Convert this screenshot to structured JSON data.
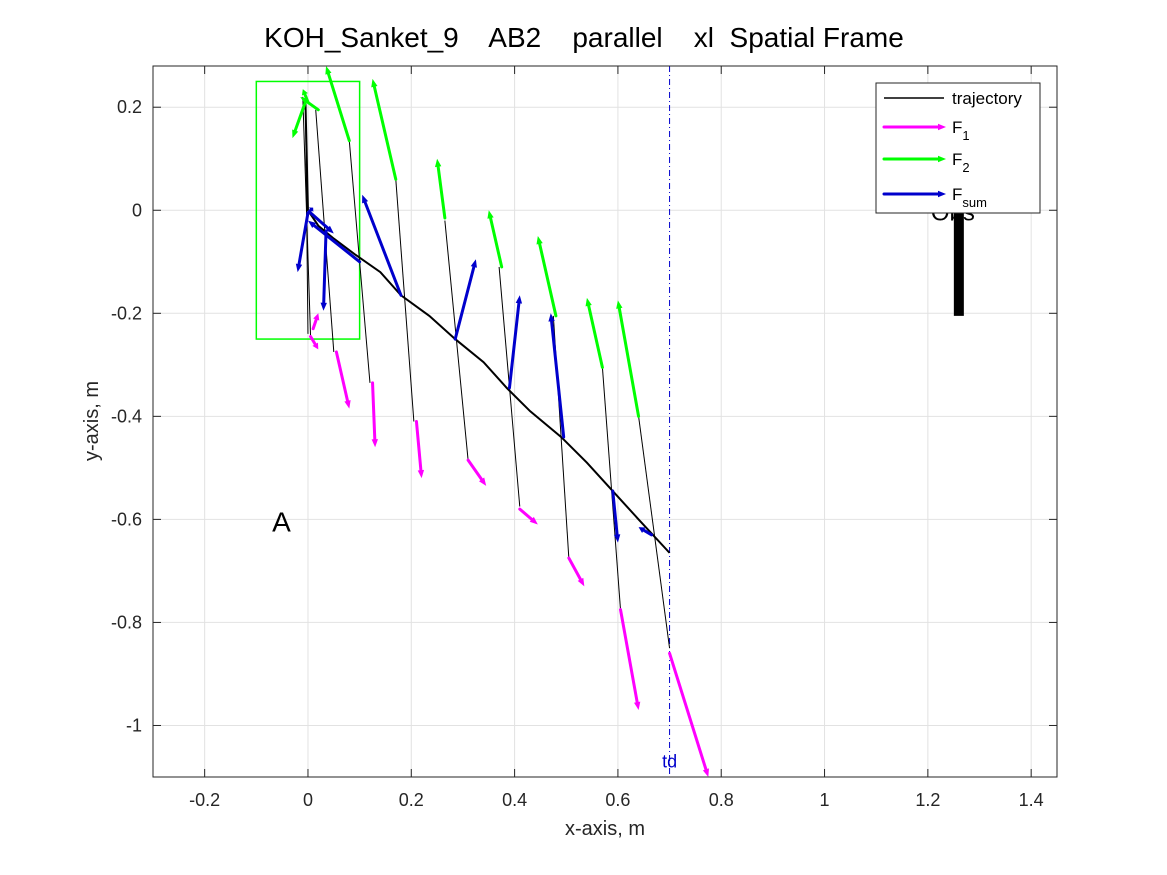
{
  "chart_data": {
    "type": "line",
    "title": "KOH_Sanket_9    AB2    parallel    xl  Spatial Frame",
    "xlabel": "x-axis, m",
    "ylabel": "y-axis, m",
    "xlim": [
      -0.3,
      1.45
    ],
    "ylim": [
      -1.1,
      0.28
    ],
    "xticks": [
      -0.2,
      0,
      0.2,
      0.4,
      0.6,
      0.8,
      1,
      1.2,
      1.4
    ],
    "xtick_labels": [
      "-0.2",
      "0",
      "0.2",
      "0.4",
      "0.6",
      "0.8",
      "1",
      "1.2",
      "1.4"
    ],
    "yticks": [
      0.2,
      0,
      -0.2,
      -0.4,
      -0.6,
      -0.8,
      -1
    ],
    "ytick_labels": [
      "0.2",
      "0",
      "-0.2",
      "-0.4",
      "-0.6",
      "-0.8",
      "-1"
    ],
    "grid": true,
    "legend": {
      "placement": "top-right",
      "entries": [
        {
          "label": "trajectory",
          "sub": "",
          "color": "#000000",
          "style": "line"
        },
        {
          "label": "F",
          "sub": "1",
          "color": "#ff00ff",
          "style": "arrow"
        },
        {
          "label": "F",
          "sub": "2",
          "color": "#00ff00",
          "style": "arrow"
        },
        {
          "label": "F",
          "sub": "sum",
          "color": "#0000cc",
          "style": "arrow"
        }
      ]
    },
    "trajectory": {
      "x": [
        -0.005,
        0.0,
        0.02,
        0.05,
        0.09,
        0.14,
        0.18,
        0.235,
        0.285,
        0.34,
        0.385,
        0.43,
        0.49,
        0.54,
        0.59,
        0.64,
        0.7
      ],
      "y": [
        0.215,
        0.0,
        -0.03,
        -0.055,
        -0.085,
        -0.12,
        -0.165,
        -0.205,
        -0.25,
        -0.295,
        -0.345,
        -0.39,
        -0.44,
        -0.49,
        -0.545,
        -0.6,
        -0.665
      ]
    },
    "links": [
      {
        "x": [
          -0.005,
          0.0
        ],
        "y": [
          0.215,
          -0.24
        ]
      },
      {
        "x": [
          -0.01,
          0.005
        ],
        "y": [
          0.22,
          -0.245
        ]
      },
      {
        "x": [
          0.015,
          0.05
        ],
        "y": [
          0.195,
          -0.275
        ]
      },
      {
        "x": [
          0.08,
          0.12
        ],
        "y": [
          0.135,
          -0.335
        ]
      },
      {
        "x": [
          0.17,
          0.205
        ],
        "y": [
          0.06,
          -0.41
        ]
      },
      {
        "x": [
          0.265,
          0.31
        ],
        "y": [
          -0.02,
          -0.485
        ]
      },
      {
        "x": [
          0.37,
          0.41
        ],
        "y": [
          -0.11,
          -0.575
        ]
      },
      {
        "x": [
          0.475,
          0.505
        ],
        "y": [
          -0.205,
          -0.675
        ]
      },
      {
        "x": [
          0.57,
          0.605
        ],
        "y": [
          -0.305,
          -0.775
        ]
      },
      {
        "x": [
          0.64,
          0.7
        ],
        "y": [
          -0.4,
          -0.85
        ]
      }
    ],
    "F1_arrows": [
      {
        "x0": 0.005,
        "y0": -0.245,
        "x1": 0.02,
        "y1": -0.27
      },
      {
        "x0": 0.01,
        "y0": -0.23,
        "x1": 0.02,
        "y1": -0.2
      },
      {
        "x0": 0.055,
        "y0": -0.275,
        "x1": 0.08,
        "y1": -0.385
      },
      {
        "x0": 0.125,
        "y0": -0.335,
        "x1": 0.13,
        "y1": -0.46
      },
      {
        "x0": 0.21,
        "y0": -0.41,
        "x1": 0.22,
        "y1": -0.52
      },
      {
        "x0": 0.31,
        "y0": -0.485,
        "x1": 0.345,
        "y1": -0.535
      },
      {
        "x0": 0.41,
        "y0": -0.58,
        "x1": 0.445,
        "y1": -0.61
      },
      {
        "x0": 0.505,
        "y0": -0.675,
        "x1": 0.535,
        "y1": -0.73
      },
      {
        "x0": 0.605,
        "y0": -0.775,
        "x1": 0.64,
        "y1": -0.97
      },
      {
        "x0": 0.7,
        "y0": -0.86,
        "x1": 0.775,
        "y1": -1.1
      }
    ],
    "F2_arrows": [
      {
        "x0": -0.005,
        "y0": 0.21,
        "x1": -0.03,
        "y1": 0.14
      },
      {
        "x0": 0.02,
        "y0": 0.195,
        "x1": -0.015,
        "y1": 0.22
      },
      {
        "x0": 0.0,
        "y0": 0.21,
        "x1": -0.01,
        "y1": 0.235
      },
      {
        "x0": 0.08,
        "y0": 0.135,
        "x1": 0.035,
        "y1": 0.28
      },
      {
        "x0": 0.17,
        "y0": 0.06,
        "x1": 0.125,
        "y1": 0.255
      },
      {
        "x0": 0.265,
        "y0": -0.015,
        "x1": 0.25,
        "y1": 0.1
      },
      {
        "x0": 0.375,
        "y0": -0.11,
        "x1": 0.35,
        "y1": 0.0
      },
      {
        "x0": 0.48,
        "y0": -0.205,
        "x1": 0.445,
        "y1": -0.05
      },
      {
        "x0": 0.57,
        "y0": -0.305,
        "x1": 0.54,
        "y1": -0.17
      },
      {
        "x0": 0.64,
        "y0": -0.4,
        "x1": 0.6,
        "y1": -0.175
      }
    ],
    "Fsum_arrows": [
      {
        "x0": 0.0,
        "y0": -0.005,
        "x1": -0.02,
        "y1": -0.12
      },
      {
        "x0": 0.0,
        "y0": -0.005,
        "x1": 0.01,
        "y1": 0.005
      },
      {
        "x0": 0.005,
        "y0": -0.005,
        "x1": 0.05,
        "y1": -0.045
      },
      {
        "x0": 0.035,
        "y0": -0.04,
        "x1": 0.03,
        "y1": -0.195
      },
      {
        "x0": 0.1,
        "y0": -0.1,
        "x1": 0.0,
        "y1": -0.02
      },
      {
        "x0": 0.18,
        "y0": -0.165,
        "x1": 0.105,
        "y1": 0.03
      },
      {
        "x0": 0.285,
        "y0": -0.25,
        "x1": 0.325,
        "y1": -0.095
      },
      {
        "x0": 0.39,
        "y0": -0.345,
        "x1": 0.41,
        "y1": -0.165
      },
      {
        "x0": 0.495,
        "y0": -0.44,
        "x1": 0.47,
        "y1": -0.2
      },
      {
        "x0": 0.59,
        "y0": -0.545,
        "x1": 0.6,
        "y1": -0.645
      },
      {
        "x0": 0.665,
        "y0": -0.63,
        "x1": 0.64,
        "y1": -0.615
      }
    ],
    "box": {
      "x": [
        -0.1,
        0.1
      ],
      "y": [
        -0.25,
        0.25
      ],
      "color": "#00ff00"
    },
    "obstacle": {
      "x": 1.26,
      "y": [
        -0.205,
        0.0
      ],
      "color": "#000000"
    },
    "td_line": {
      "x": 0.7,
      "color": "#0000cc"
    },
    "annotations": [
      {
        "text": "A",
        "x": -0.05,
        "y": -0.6,
        "color": "#000000"
      },
      {
        "text": "td",
        "x": 0.7,
        "y": -1.08,
        "color": "#0000cc"
      },
      {
        "text": "Obs",
        "x": 1.26,
        "y": 0.0,
        "color": "#000000"
      }
    ]
  }
}
